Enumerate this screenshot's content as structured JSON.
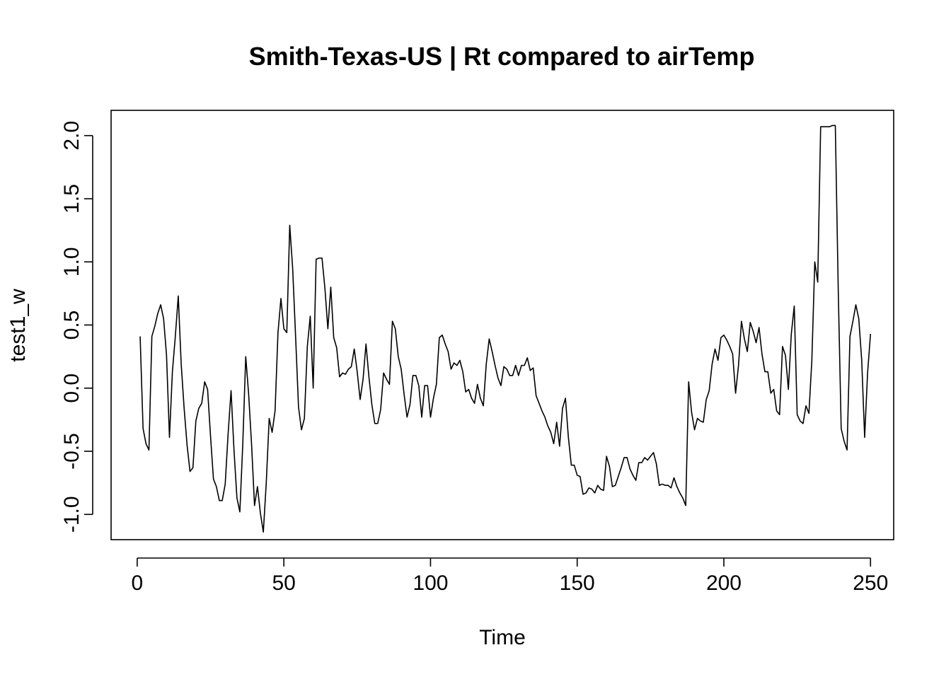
{
  "chart_data": {
    "type": "line",
    "title": "Smith-Texas-US | Rt compared to airTemp",
    "xlabel": "Time",
    "ylabel": "test1_w",
    "xlim": [
      -8.9,
      257.9
    ],
    "ylim": [
      -1.2,
      2.2
    ],
    "x_ticks": [
      0,
      50,
      100,
      150,
      200,
      250
    ],
    "x_tick_labels": [
      "0",
      "50",
      "100",
      "150",
      "200",
      "250"
    ],
    "y_ticks": [
      -1.0,
      -0.5,
      0.0,
      0.5,
      1.0,
      1.5,
      2.0
    ],
    "y_tick_labels": [
      "-1.0",
      "-0.5",
      "0.0",
      "0.5",
      "1.0",
      "1.5",
      "2.0"
    ],
    "line_color": "#000000",
    "grid": false,
    "legend": "none",
    "x_start": 1,
    "x_step": 1,
    "values": [
      0.41,
      -0.32,
      -0.44,
      -0.49,
      0.41,
      0.49,
      0.59,
      0.66,
      0.55,
      0.26,
      -0.39,
      0.13,
      0.41,
      0.73,
      0.19,
      -0.16,
      -0.45,
      -0.66,
      -0.63,
      -0.26,
      -0.16,
      -0.12,
      0.05,
      -0.01,
      -0.38,
      -0.72,
      -0.78,
      -0.89,
      -0.89,
      -0.76,
      -0.36,
      -0.02,
      -0.49,
      -0.87,
      -0.98,
      -0.44,
      0.25,
      -0.05,
      -0.45,
      -0.93,
      -0.78,
      -0.99,
      -1.14,
      -0.75,
      -0.24,
      -0.35,
      -0.18,
      0.44,
      0.71,
      0.47,
      0.44,
      1.29,
      0.95,
      0.41,
      -0.15,
      -0.33,
      -0.24,
      0.33,
      0.57,
      0.0,
      1.02,
      1.03,
      1.03,
      0.79,
      0.47,
      0.8,
      0.4,
      0.32,
      0.09,
      0.12,
      0.11,
      0.15,
      0.17,
      0.31,
      0.13,
      -0.09,
      0.07,
      0.35,
      0.09,
      -0.13,
      -0.28,
      -0.28,
      -0.17,
      0.12,
      0.07,
      0.03,
      0.53,
      0.47,
      0.25,
      0.15,
      -0.05,
      -0.23,
      -0.13,
      0.1,
      0.1,
      0.02,
      -0.23,
      0.02,
      0.02,
      -0.23,
      -0.08,
      0.03,
      0.4,
      0.42,
      0.35,
      0.29,
      0.15,
      0.2,
      0.18,
      0.22,
      0.13,
      -0.03,
      -0.01,
      -0.08,
      -0.12,
      0.03,
      -0.08,
      -0.14,
      0.19,
      0.39,
      0.29,
      0.18,
      0.08,
      0.02,
      0.17,
      0.15,
      0.1,
      0.1,
      0.18,
      0.1,
      0.18,
      0.18,
      0.24,
      0.14,
      0.16,
      -0.06,
      -0.12,
      -0.18,
      -0.23,
      -0.3,
      -0.35,
      -0.44,
      -0.27,
      -0.46,
      -0.16,
      -0.08,
      -0.39,
      -0.61,
      -0.61,
      -0.69,
      -0.7,
      -0.84,
      -0.83,
      -0.79,
      -0.8,
      -0.83,
      -0.77,
      -0.8,
      -0.81,
      -0.54,
      -0.62,
      -0.78,
      -0.77,
      -0.7,
      -0.63,
      -0.55,
      -0.55,
      -0.64,
      -0.69,
      -0.73,
      -0.59,
      -0.59,
      -0.55,
      -0.57,
      -0.54,
      -0.51,
      -0.6,
      -0.77,
      -0.76,
      -0.77,
      -0.77,
      -0.79,
      -0.71,
      -0.78,
      -0.83,
      -0.87,
      -0.93,
      0.05,
      -0.19,
      -0.33,
      -0.24,
      -0.26,
      -0.27,
      -0.09,
      -0.02,
      0.19,
      0.31,
      0.22,
      0.4,
      0.42,
      0.38,
      0.33,
      0.27,
      -0.04,
      0.18,
      0.53,
      0.39,
      0.29,
      0.52,
      0.45,
      0.36,
      0.48,
      0.27,
      0.13,
      0.13,
      -0.04,
      -0.01,
      -0.18,
      -0.21,
      0.33,
      0.26,
      -0.01,
      0.43,
      0.65,
      -0.21,
      -0.26,
      -0.28,
      -0.14,
      -0.2,
      0.22,
      1.0,
      0.84,
      2.07,
      2.07,
      2.07,
      2.07,
      2.08,
      2.08,
      0.78,
      -0.32,
      -0.42,
      -0.49,
      0.41,
      0.53,
      0.66,
      0.55,
      0.22,
      -0.39,
      0.12,
      0.43
    ]
  }
}
